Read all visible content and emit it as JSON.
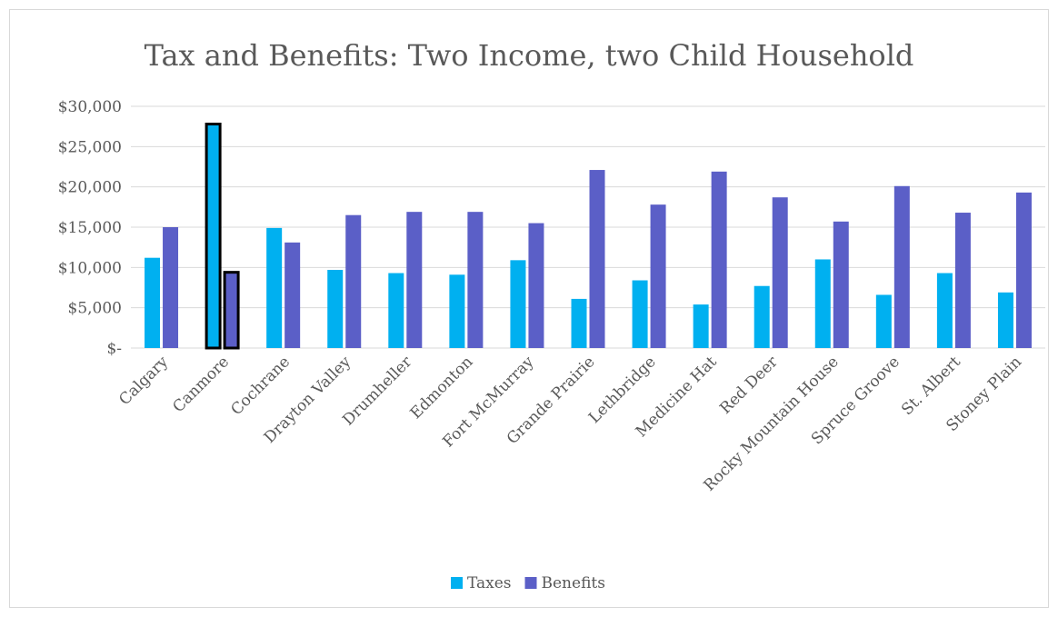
{
  "chart_data": {
    "type": "bar",
    "title": "Tax and Benefits: Two Income, two Child Household",
    "xlabel": "",
    "ylabel": "",
    "ylim": [
      0,
      30000
    ],
    "yticks": [
      0,
      5000,
      10000,
      15000,
      20000,
      25000,
      30000
    ],
    "ytick_labels": [
      "$-",
      "$5,000",
      "$10,000",
      "$15,000",
      "$20,000",
      "$25,000",
      "$30,000"
    ],
    "categories": [
      "Calgary",
      "Canmore",
      "Cochrane",
      "Drayton Valley",
      "Drumheller",
      "Edmonton",
      "Fort McMurray",
      "Grande Prairie",
      "Lethbridge",
      "Medicine Hat",
      "Red Deer",
      "Rocky Mountain House",
      "Spruce Groove",
      "St. Albert",
      "Stoney Plain"
    ],
    "series": [
      {
        "name": "Taxes",
        "color": "#00b0f0",
        "values": [
          11200,
          27800,
          14900,
          9700,
          9300,
          9100,
          10900,
          6100,
          8400,
          5400,
          7700,
          11000,
          6600,
          9300,
          6900
        ]
      },
      {
        "name": "Benefits",
        "color": "#5b5fc7",
        "values": [
          15000,
          9400,
          13100,
          16500,
          16900,
          16900,
          15500,
          22100,
          17800,
          21900,
          18700,
          15700,
          20100,
          16800,
          19300
        ]
      }
    ],
    "highlighted_category": "Canmore",
    "grid": true,
    "legend_position": "bottom"
  }
}
